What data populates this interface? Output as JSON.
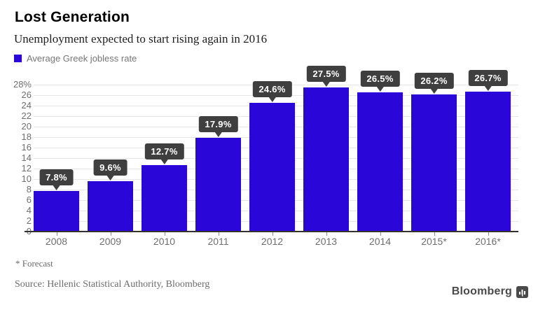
{
  "header": {
    "title": "Lost Generation",
    "subtitle": "Unemployment expected to start rising again in 2016"
  },
  "legend": {
    "label": "Average Greek jobless rate"
  },
  "chart_data": {
    "type": "bar",
    "title": "Lost Generation",
    "subtitle": "Unemployment expected to start rising again in 2016",
    "series_label": "Average Greek jobless rate",
    "categories": [
      "2008",
      "2009",
      "2010",
      "2011",
      "2012",
      "2013",
      "2014",
      "2015*",
      "2016*"
    ],
    "values": [
      7.8,
      9.6,
      12.7,
      17.9,
      24.6,
      27.5,
      26.5,
      26.2,
      26.7
    ],
    "value_labels": [
      "7.8%",
      "9.6%",
      "12.7%",
      "17.9%",
      "24.6%",
      "27.5%",
      "26.5%",
      "26.2%",
      "26.7%"
    ],
    "xlabel": "",
    "ylabel": "",
    "ylim": [
      0,
      28
    ],
    "ytick_step": 2,
    "ytick_labels": [
      "0",
      "2",
      "4",
      "6",
      "8",
      "10",
      "12",
      "14",
      "16",
      "18",
      "20",
      "22",
      "24",
      "26",
      "28%"
    ],
    "grid": true,
    "legend_position": "top-left",
    "bar_color": "#2b06d8",
    "badge_color": "#3f3f3f",
    "badge_text_color": "#ffffff"
  },
  "footnotes": {
    "forecast_note": "* Forecast",
    "source": "Source: Hellenic Statistical Authority, Bloomberg"
  },
  "branding": {
    "logo_text": "Bloomberg",
    "logo_icon": "bar-chart-icon",
    "logo_color": "#4a4a4a"
  }
}
